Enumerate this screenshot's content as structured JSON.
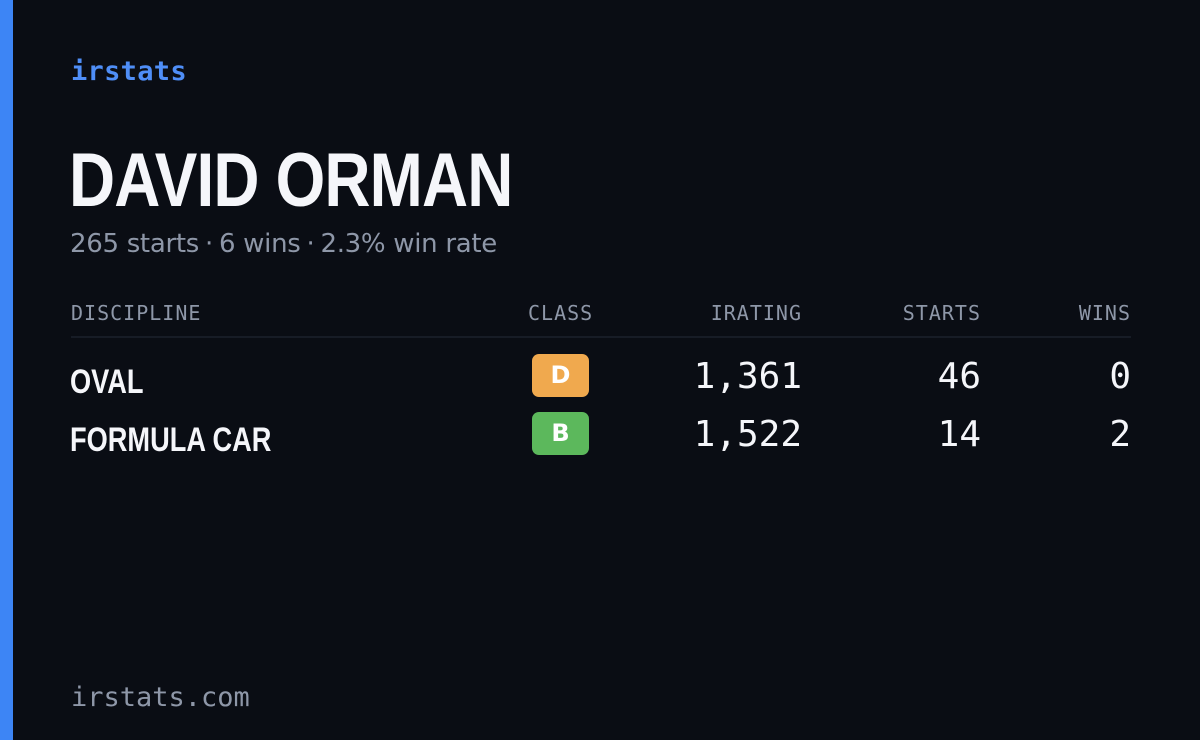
{
  "brand": "irstats",
  "driver": {
    "name": "DAVID ORMAN",
    "starts_text": "265 starts",
    "wins_text": "6 wins",
    "win_rate_text": "2.3% win rate",
    "separator": "·"
  },
  "table": {
    "headers": {
      "discipline": "DISCIPLINE",
      "class": "CLASS",
      "irating": "IRATING",
      "starts": "STARTS",
      "wins": "WINS"
    },
    "rows": [
      {
        "discipline": "OVAL",
        "class": "D",
        "class_color": "#f0a94e",
        "irating": "1,361",
        "starts": "46",
        "wins": "0"
      },
      {
        "discipline": "FORMULA CAR",
        "class": "B",
        "class_color": "#5cb85c",
        "irating": "1,522",
        "starts": "14",
        "wins": "2"
      }
    ]
  },
  "footer": "irstats.com",
  "colors": {
    "background": "#0a0d14",
    "accent": "#3d85f5",
    "text": "#f5f6fa",
    "muted": "#8e97a8"
  }
}
